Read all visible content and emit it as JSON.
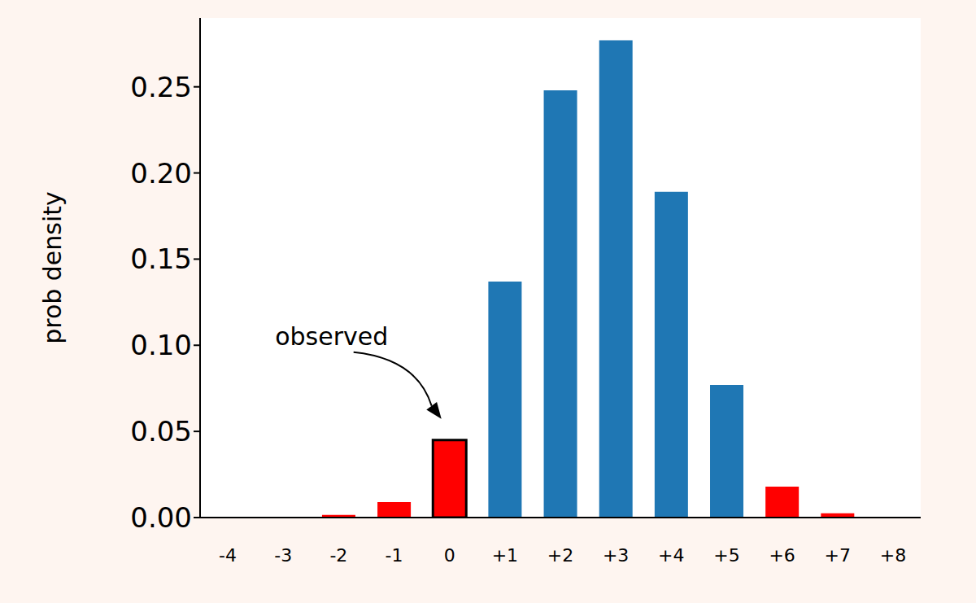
{
  "chart_data": {
    "type": "bar",
    "ylabel": "prob density",
    "categories": [
      "-4",
      "-3",
      "-2",
      "-1",
      "0",
      "+1",
      "+2",
      "+3",
      "+4",
      "+5",
      "+6",
      "+7",
      "+8"
    ],
    "values": [
      0.0003,
      0.0005,
      0.0015,
      0.009,
      0.045,
      0.137,
      0.248,
      0.277,
      0.189,
      0.077,
      0.018,
      0.0025,
      0.0005
    ],
    "colors": [
      "#ff0000",
      "#ff0000",
      "#ff0000",
      "#ff0000",
      "#ff0000",
      "#1f77b4",
      "#1f77b4",
      "#1f77b4",
      "#1f77b4",
      "#1f77b4",
      "#ff0000",
      "#ff0000",
      "#ff0000"
    ],
    "ylim": [
      0,
      0.29
    ],
    "yticks": [
      {
        "value": 0,
        "label": "0.00"
      },
      0.05,
      {
        "value": 0.1,
        "label": "0.10"
      },
      0.15,
      {
        "value": 0.2,
        "label": "0.20"
      },
      0.25
    ],
    "annotations": [
      {
        "text": "observed",
        "category": "0"
      }
    ]
  }
}
